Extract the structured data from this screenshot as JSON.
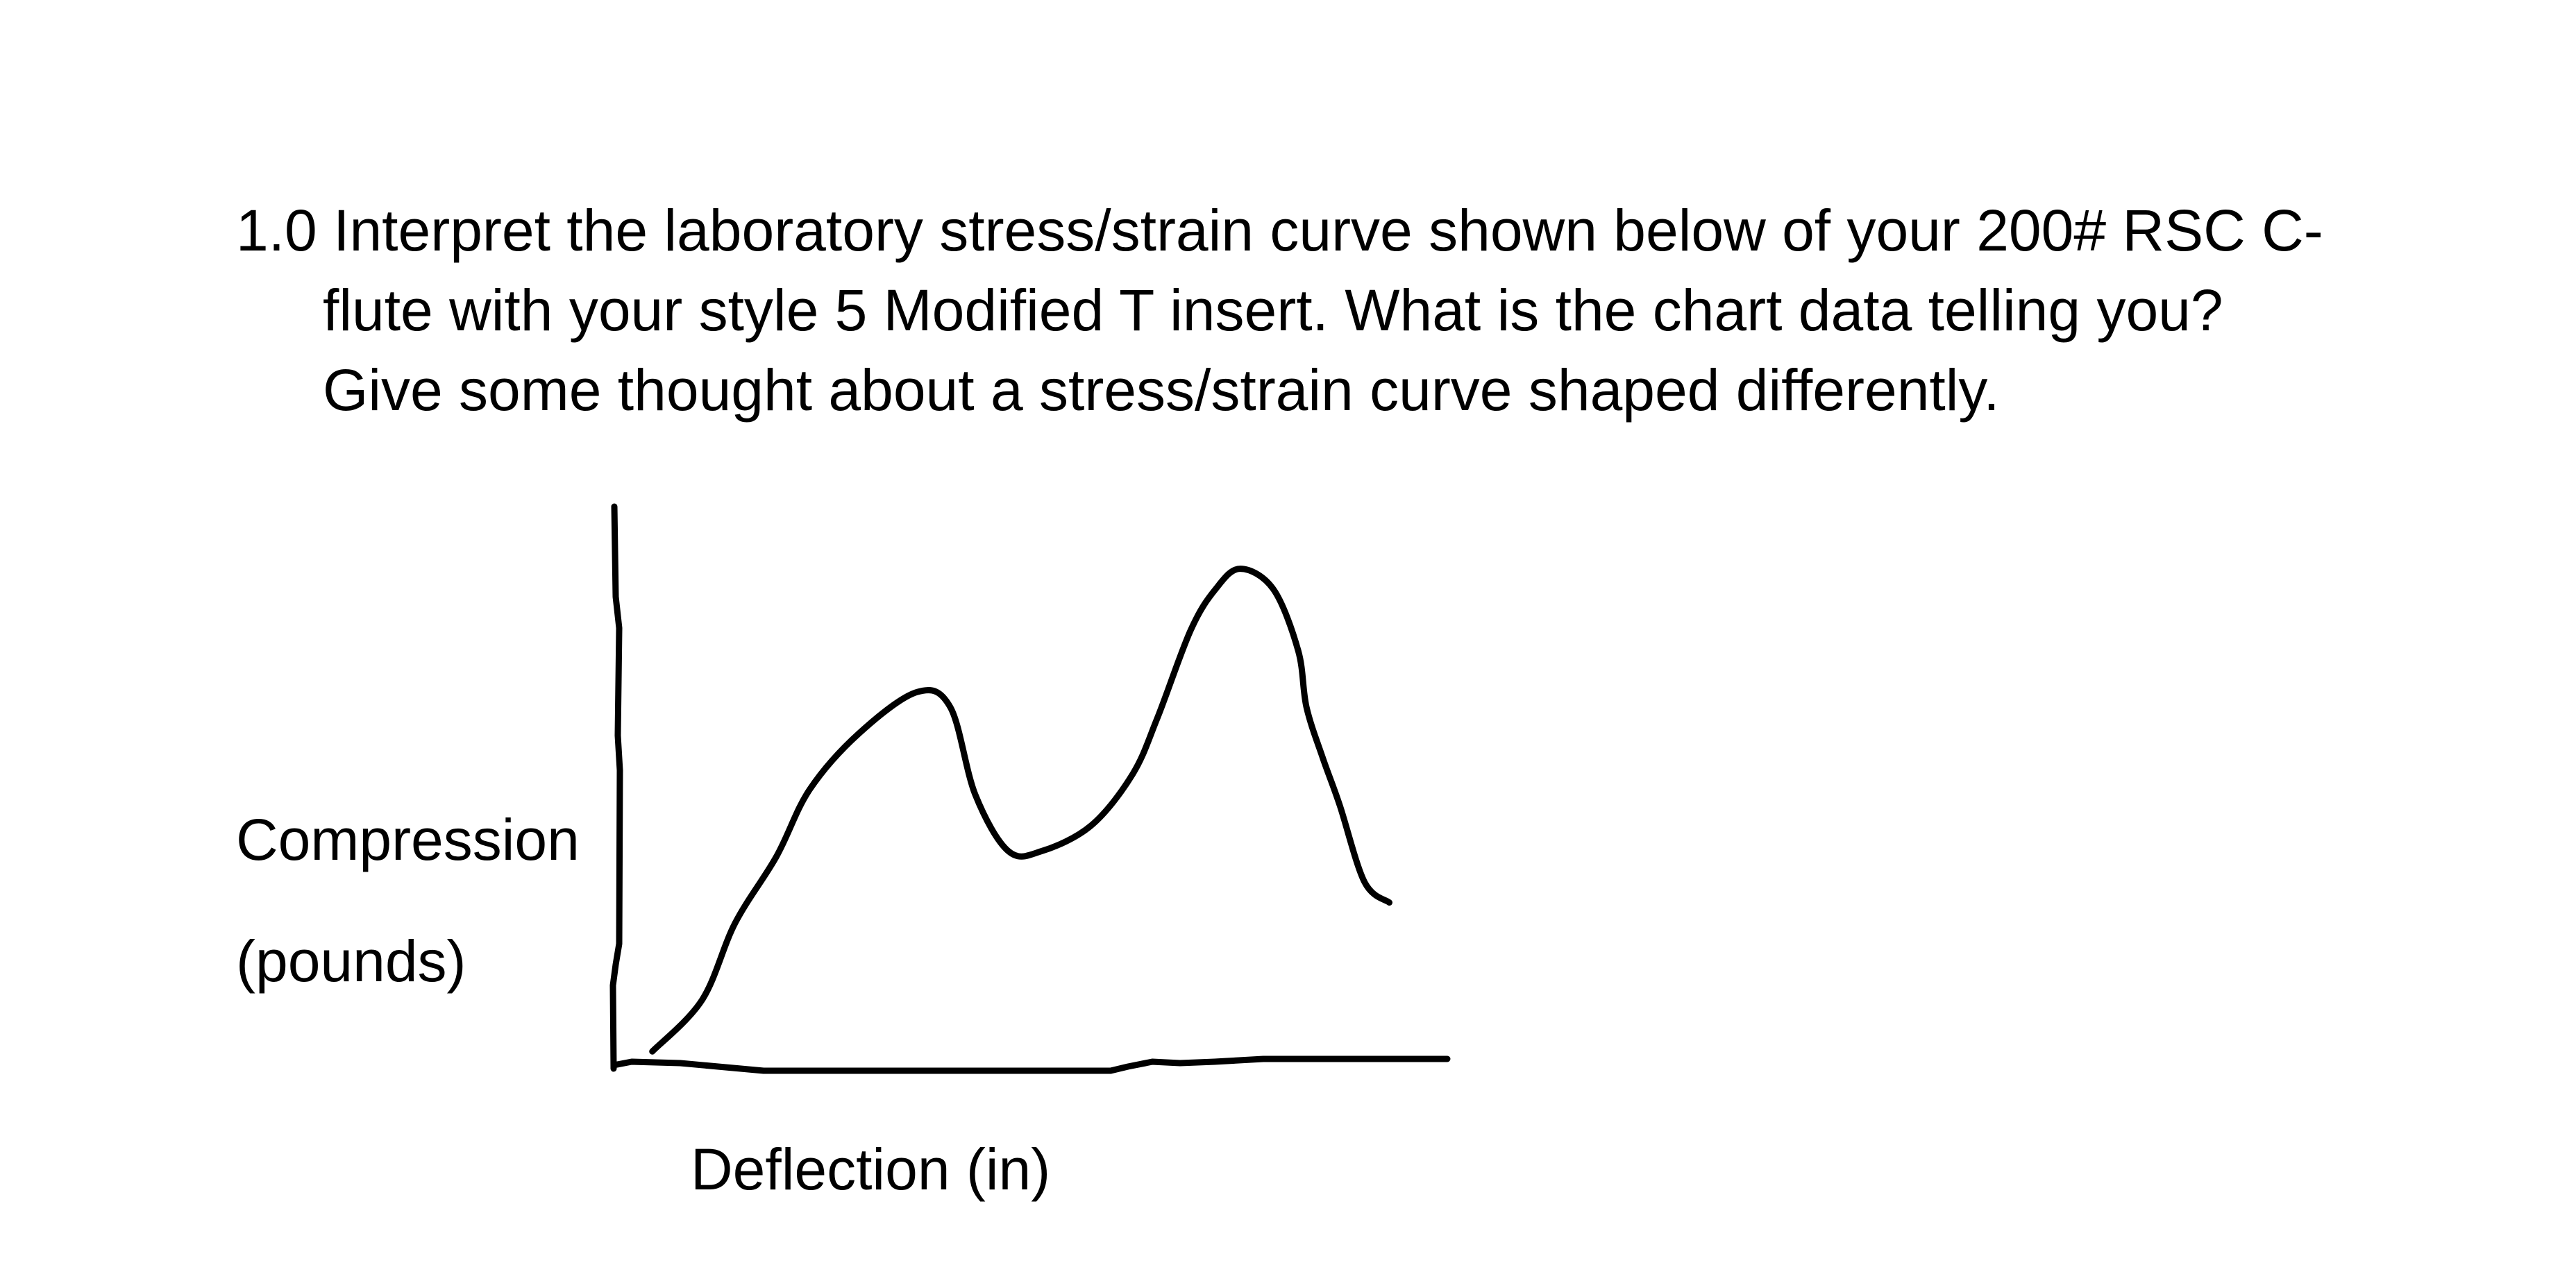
{
  "question": {
    "line1": "1.0 Interpret the laboratory stress/strain curve shown below of your 200# RSC C-",
    "line2": "flute with your style 5 Modified T insert. What is the chart data telling you?",
    "line3": "Give some thought about a stress/strain curve shaped differently."
  },
  "chart_data": {
    "type": "line",
    "title": "",
    "xlabel": "Deflection (in)",
    "ylabel_line1": "Compression",
    "ylabel_line2": "(pounds)",
    "grid": false,
    "legend": "none",
    "xlim": [
      0,
      100
    ],
    "ylim": [
      0,
      100
    ],
    "series": [
      {
        "x": [
          4,
          10,
          14,
          19,
          23,
          29,
          36,
          40,
          43,
          47,
          51,
          57,
          62,
          65,
          69,
          72,
          75,
          79,
          82,
          83,
          85,
          87,
          90,
          93
        ],
        "y": [
          2,
          12,
          27,
          40,
          53,
          64,
          72,
          69,
          52,
          41,
          41,
          46,
          56,
          67,
          84,
          92,
          96,
          92,
          80,
          69,
          59,
          50,
          35,
          31
        ]
      }
    ]
  }
}
